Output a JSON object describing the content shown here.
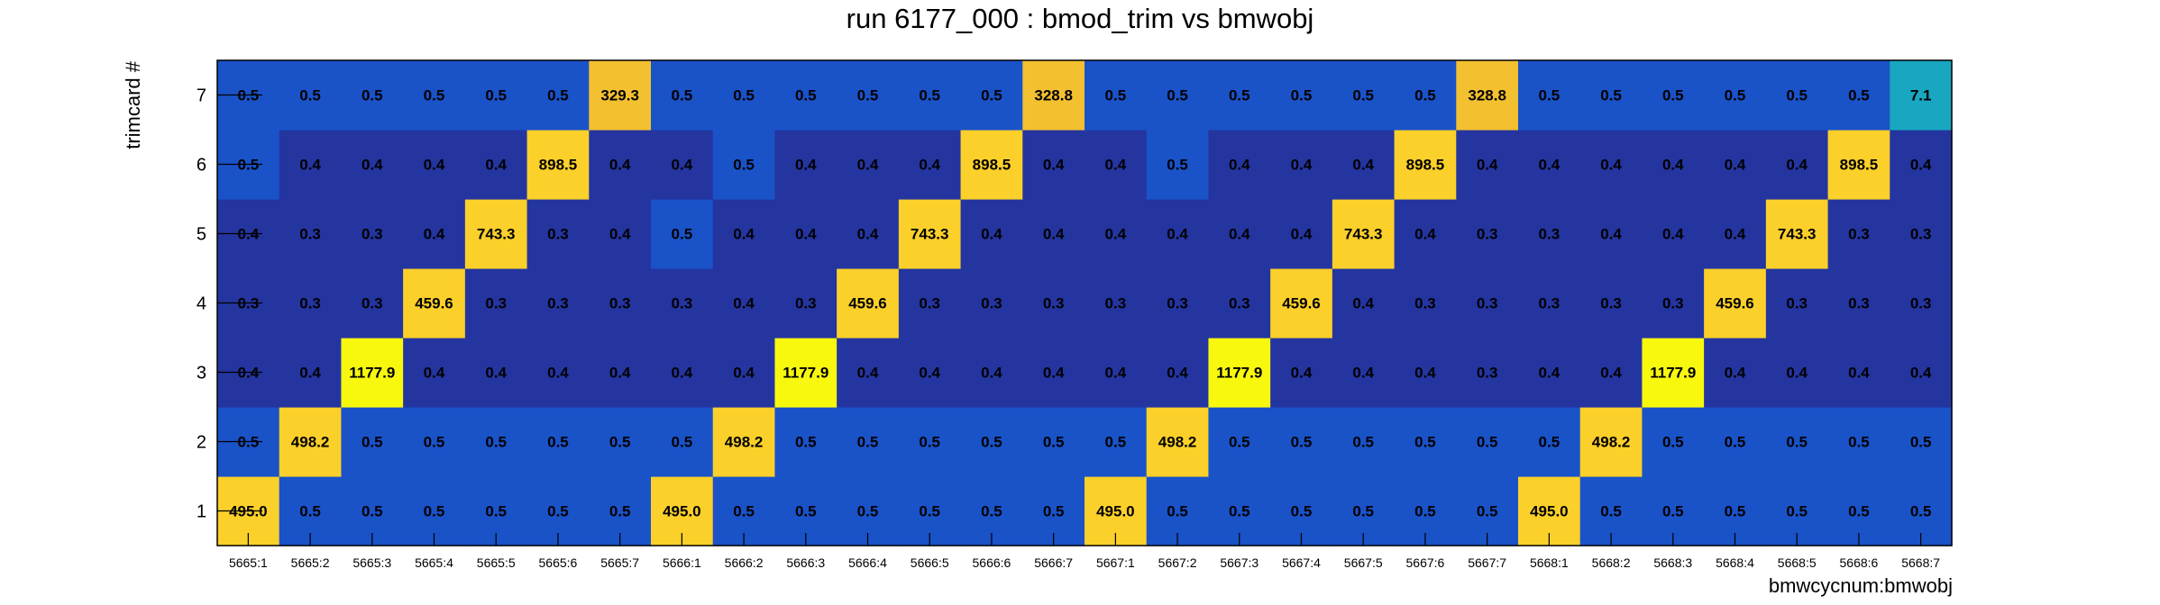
{
  "chart_data": {
    "type": "heatmap",
    "title": "run 6177_000 : bmod_trim vs bmwobj",
    "xlabel": "bmwcycnum:bmwobj",
    "ylabel": "trimcard #",
    "x_categories": [
      "5665:1",
      "5665:2",
      "5665:3",
      "5665:4",
      "5665:5",
      "5665:6",
      "5665:7",
      "5666:1",
      "5666:2",
      "5666:3",
      "5666:4",
      "5666:5",
      "5666:6",
      "5666:7",
      "5667:1",
      "5667:2",
      "5667:3",
      "5667:4",
      "5667:5",
      "5667:6",
      "5667:7",
      "5668:1",
      "5668:2",
      "5668:3",
      "5668:4",
      "5668:5",
      "5668:6",
      "5668:7"
    ],
    "y_categories": [
      "1",
      "2",
      "3",
      "4",
      "5",
      "6",
      "7"
    ],
    "values": [
      [
        "495.0",
        "0.5",
        "0.5",
        "0.5",
        "0.5",
        "0.5",
        "0.5",
        "495.0",
        "0.5",
        "0.5",
        "0.5",
        "0.5",
        "0.5",
        "0.5",
        "495.0",
        "0.5",
        "0.5",
        "0.5",
        "0.5",
        "0.5",
        "0.5",
        "495.0",
        "0.5",
        "0.5",
        "0.5",
        "0.5",
        "0.5",
        "0.5"
      ],
      [
        "0.5",
        "498.2",
        "0.5",
        "0.5",
        "0.5",
        "0.5",
        "0.5",
        "0.5",
        "498.2",
        "0.5",
        "0.5",
        "0.5",
        "0.5",
        "0.5",
        "0.5",
        "498.2",
        "0.5",
        "0.5",
        "0.5",
        "0.5",
        "0.5",
        "0.5",
        "498.2",
        "0.5",
        "0.5",
        "0.5",
        "0.5",
        "0.5"
      ],
      [
        "0.4",
        "0.4",
        "1177.9",
        "0.4",
        "0.4",
        "0.4",
        "0.4",
        "0.4",
        "0.4",
        "1177.9",
        "0.4",
        "0.4",
        "0.4",
        "0.4",
        "0.4",
        "0.4",
        "1177.9",
        "0.4",
        "0.4",
        "0.4",
        "0.3",
        "0.4",
        "0.4",
        "1177.9",
        "0.4",
        "0.4",
        "0.4",
        "0.4"
      ],
      [
        "0.3",
        "0.3",
        "0.3",
        "459.6",
        "0.3",
        "0.3",
        "0.3",
        "0.3",
        "0.4",
        "0.3",
        "459.6",
        "0.3",
        "0.3",
        "0.3",
        "0.3",
        "0.3",
        "0.3",
        "459.6",
        "0.4",
        "0.3",
        "0.3",
        "0.3",
        "0.3",
        "0.3",
        "459.6",
        "0.3",
        "0.3",
        "0.3"
      ],
      [
        "0.4",
        "0.3",
        "0.3",
        "0.4",
        "743.3",
        "0.3",
        "0.4",
        "0.5",
        "0.4",
        "0.4",
        "0.4",
        "743.3",
        "0.4",
        "0.4",
        "0.4",
        "0.4",
        "0.4",
        "0.4",
        "743.3",
        "0.4",
        "0.3",
        "0.3",
        "0.4",
        "0.4",
        "0.4",
        "743.3",
        "0.3",
        "0.3"
      ],
      [
        "0.5",
        "0.4",
        "0.4",
        "0.4",
        "0.4",
        "898.5",
        "0.4",
        "0.4",
        "0.5",
        "0.4",
        "0.4",
        "0.4",
        "898.5",
        "0.4",
        "0.4",
        "0.5",
        "0.4",
        "0.4",
        "0.4",
        "898.5",
        "0.4",
        "0.4",
        "0.4",
        "0.4",
        "0.4",
        "0.4",
        "898.5",
        "0.4"
      ],
      [
        "0.5",
        "0.5",
        "0.5",
        "0.5",
        "0.5",
        "0.5",
        "329.3",
        "0.5",
        "0.5",
        "0.5",
        "0.5",
        "0.5",
        "0.5",
        "328.8",
        "0.5",
        "0.5",
        "0.5",
        "0.5",
        "0.5",
        "0.5",
        "328.8",
        "0.5",
        "0.5",
        "0.5",
        "0.5",
        "0.5",
        "0.5",
        "7.1"
      ]
    ],
    "colors": {
      "low": "#2435a0",
      "mid": "#1a52c8",
      "teal": "#18a6c0",
      "orange": "#f3c030",
      "gold": "#fbd02a",
      "yellow": "#f8f80f"
    },
    "legend": "none",
    "grid": false
  }
}
